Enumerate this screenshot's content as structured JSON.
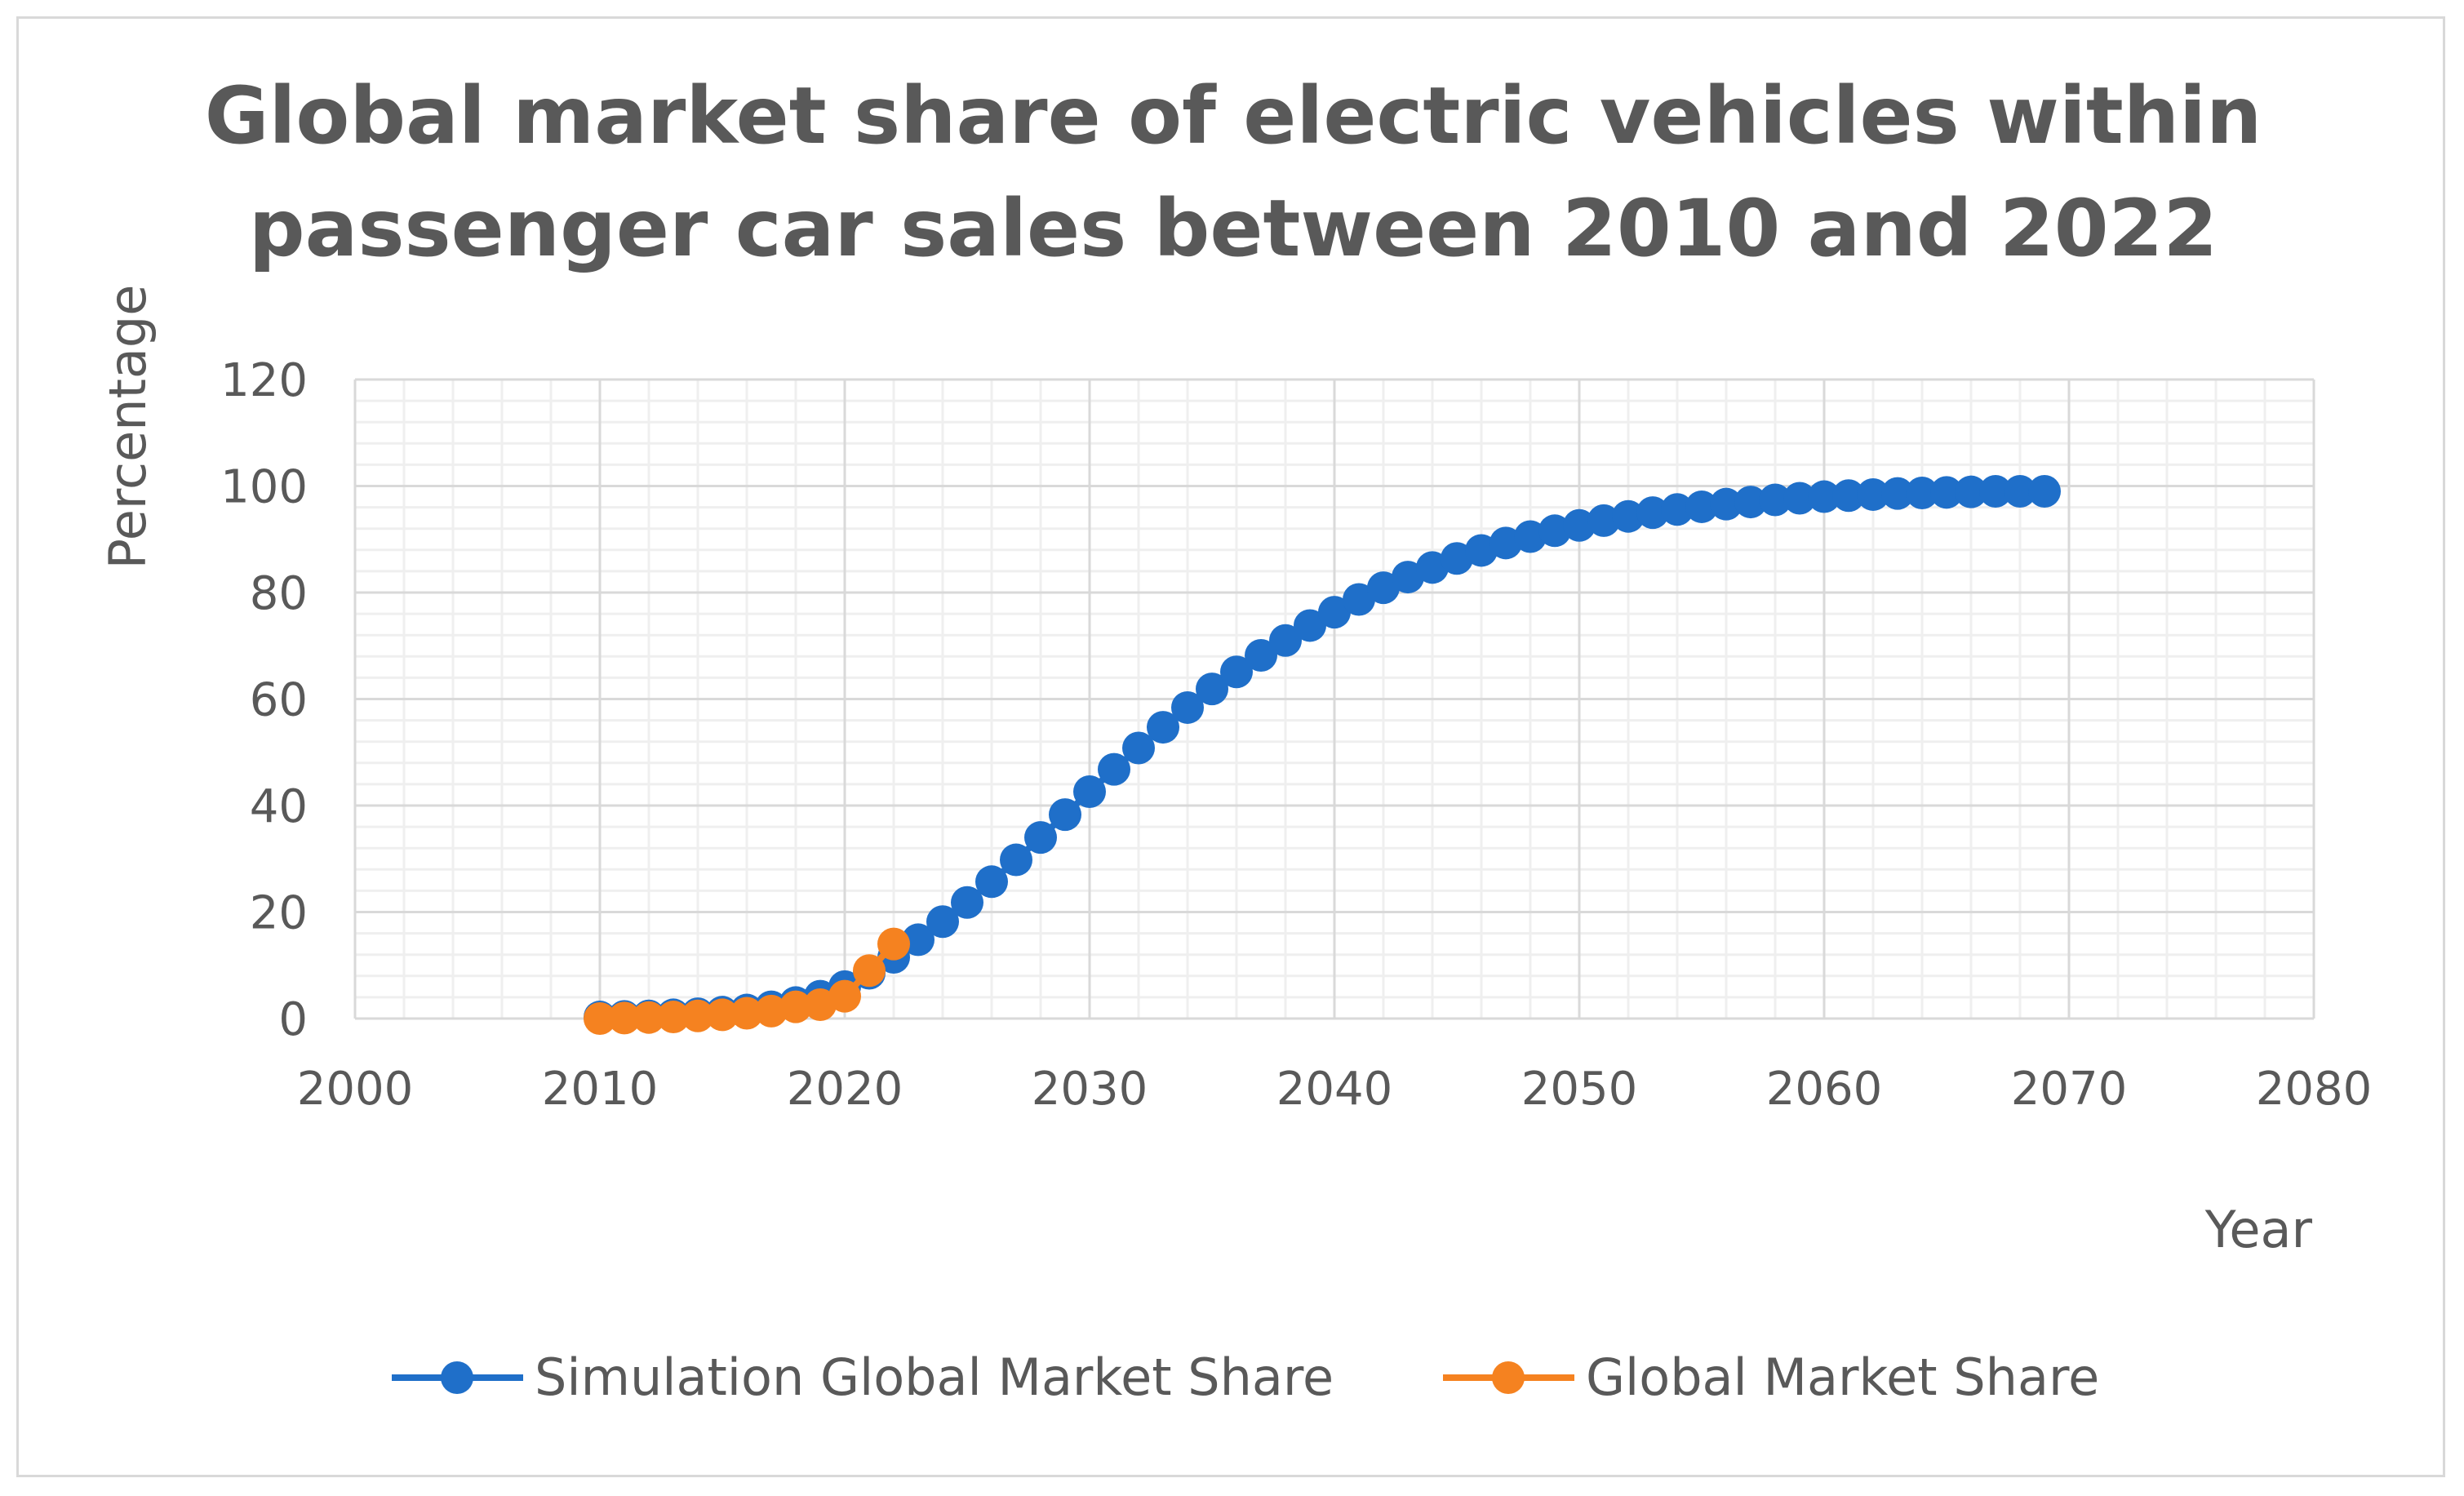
{
  "chart_data": {
    "type": "scatter",
    "title_lines": [
      "Global market share of electric vehicles within",
      "passenger car sales between 2010 and 2022"
    ],
    "xlabel": "Year",
    "ylabel": "Percentage",
    "xlim": [
      2000,
      2080
    ],
    "ylim": [
      0,
      120
    ],
    "x_ticks": [
      2000,
      2010,
      2020,
      2030,
      2040,
      2050,
      2060,
      2070,
      2080
    ],
    "y_ticks": [
      0,
      20,
      40,
      60,
      80,
      100,
      120
    ],
    "x_tick_labels": [
      "2000",
      "2010",
      "2020",
      "2030",
      "2040",
      "2050",
      "2060",
      "2070",
      "2080"
    ],
    "y_tick_labels": [
      "0",
      "20",
      "40",
      "60",
      "80",
      "100",
      "120"
    ],
    "grid": true,
    "legend_position": "bottom",
    "series": [
      {
        "name": "Simulation Global Market Share",
        "color": "#1f6fc9",
        "x": [
          2010,
          2011,
          2012,
          2013,
          2014,
          2015,
          2016,
          2017,
          2018,
          2019,
          2020,
          2021,
          2022,
          2023,
          2024,
          2025,
          2026,
          2027,
          2028,
          2029,
          2030,
          2031,
          2032,
          2033,
          2034,
          2035,
          2036,
          2037,
          2038,
          2039,
          2040,
          2041,
          2042,
          2043,
          2044,
          2045,
          2046,
          2047,
          2048,
          2049,
          2050,
          2051,
          2052,
          2053,
          2054,
          2055,
          2056,
          2057,
          2058,
          2059,
          2060,
          2061,
          2062,
          2063,
          2064,
          2065,
          2066,
          2067,
          2068,
          2069
        ],
        "values": [
          0.3,
          0.4,
          0.5,
          0.7,
          0.9,
          1.2,
          1.6,
          2.2,
          3.0,
          4.2,
          6.0,
          8.5,
          11.5,
          14.8,
          18.2,
          21.8,
          25.7,
          29.8,
          34.0,
          38.3,
          42.6,
          46.8,
          50.8,
          54.7,
          58.4,
          61.9,
          65.1,
          68.2,
          71.0,
          73.8,
          76.3,
          78.7,
          80.9,
          82.9,
          84.7,
          86.4,
          87.9,
          89.3,
          90.5,
          91.6,
          92.6,
          93.5,
          94.3,
          95.0,
          95.6,
          96.1,
          96.6,
          97.0,
          97.4,
          97.7,
          98.0,
          98.2,
          98.4,
          98.6,
          98.7,
          98.8,
          98.9,
          99.0,
          99.0,
          99.0
        ]
      },
      {
        "name": "Global Market Share",
        "color": "#f58220",
        "x": [
          2010,
          2011,
          2012,
          2013,
          2014,
          2015,
          2016,
          2017,
          2018,
          2019,
          2020,
          2021,
          2022
        ],
        "values": [
          0.0,
          0.1,
          0.2,
          0.3,
          0.5,
          0.7,
          1.0,
          1.4,
          2.2,
          2.6,
          4.2,
          9.0,
          14.0
        ]
      }
    ]
  }
}
